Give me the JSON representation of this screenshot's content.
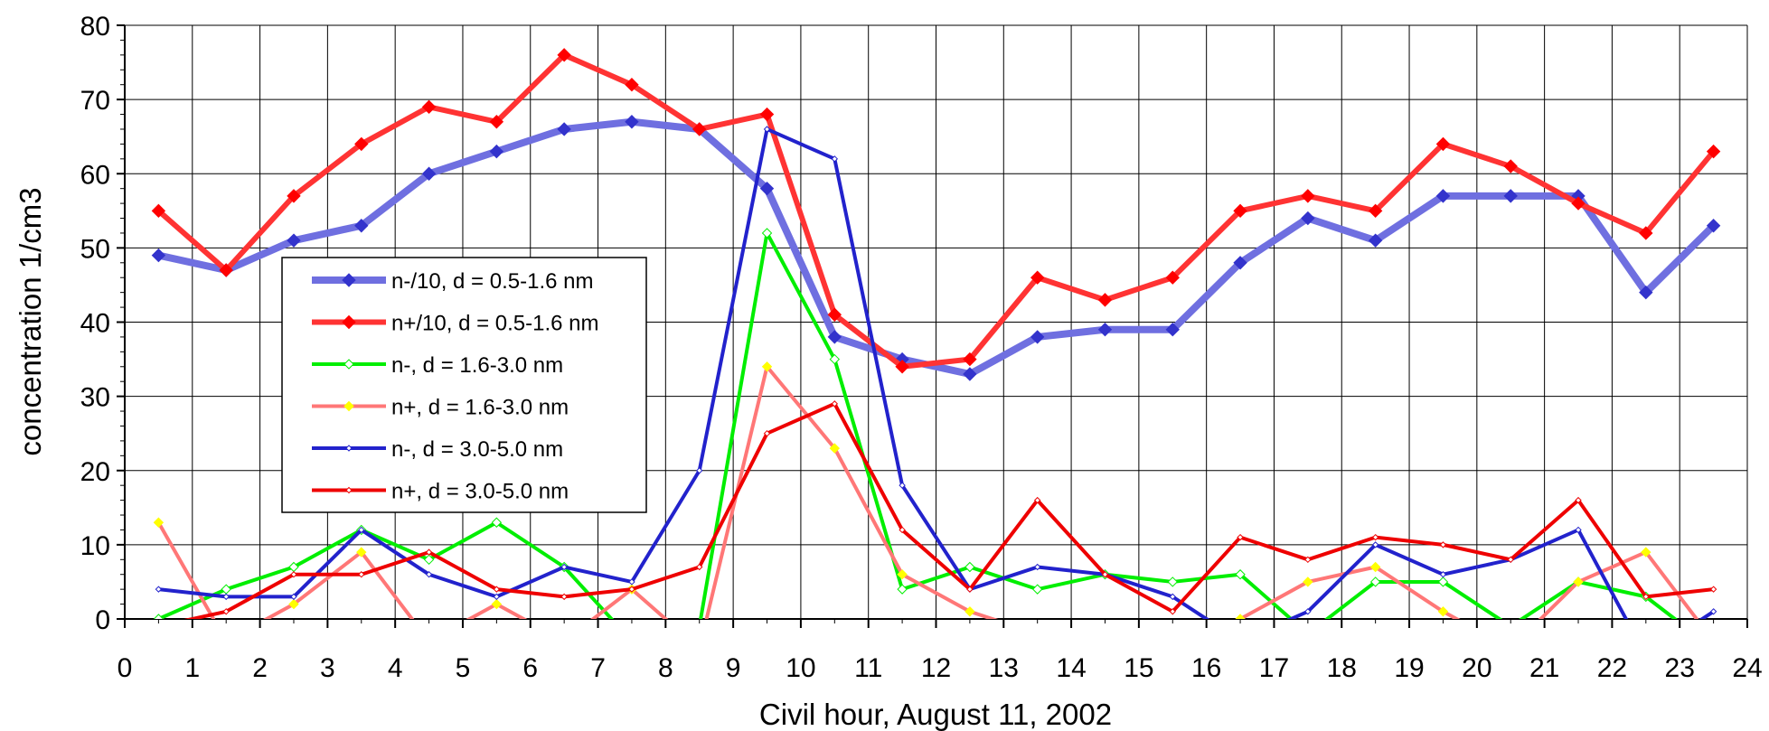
{
  "chart_data": {
    "type": "line",
    "xlabel": "Civil hour, August 11, 2002",
    "ylabel": "concentration 1/cm3",
    "xlim": [
      0,
      24
    ],
    "ylim": [
      0,
      80
    ],
    "x_ticks": [
      "0",
      "1",
      "2",
      "3",
      "4",
      "5",
      "6",
      "7",
      "8",
      "9",
      "10",
      "11",
      "12",
      "13",
      "14",
      "15",
      "16",
      "17",
      "18",
      "19",
      "20",
      "21",
      "22",
      "23",
      "24"
    ],
    "y_ticks": [
      "0",
      "10",
      "20",
      "30",
      "40",
      "50",
      "60",
      "70",
      "80"
    ],
    "grid": true,
    "legend_position": "left-middle",
    "x": [
      0.5,
      1.5,
      2.5,
      3.5,
      4.5,
      5.5,
      6.5,
      7.5,
      8.5,
      9.5,
      10.5,
      11.5,
      12.5,
      13.5,
      14.5,
      15.5,
      16.5,
      17.5,
      18.5,
      19.5,
      20.5,
      21.5,
      22.5,
      23.5
    ],
    "series": [
      {
        "name": "n-/10, d = 0.5-1.6 nm",
        "color": "#6f6fe0",
        "marker": "diamond",
        "marker_color": "#3333cc",
        "values": [
          49,
          47,
          51,
          53,
          60,
          63,
          66,
          67,
          66,
          58,
          38,
          35,
          33,
          38,
          39,
          39,
          48,
          54,
          51,
          57,
          57,
          57,
          44,
          53
        ]
      },
      {
        "name": "n+/10, d = 0.5-1.6 nm",
        "color": "#ff3333",
        "marker": "diamond",
        "marker_color": "#ff0000",
        "values": [
          55,
          47,
          57,
          64,
          69,
          67,
          76,
          72,
          66,
          68,
          41,
          34,
          35,
          46,
          43,
          46,
          55,
          57,
          55,
          64,
          61,
          56,
          52,
          63
        ]
      },
      {
        "name": "n-, d = 1.6-3.0 nm",
        "color": "#00ee00",
        "marker": "open-diamond",
        "marker_color": "#00ee00",
        "values": [
          0,
          4,
          7,
          12,
          8,
          13,
          7,
          -3,
          -1,
          52,
          35,
          4,
          7,
          4,
          6,
          5,
          6,
          -2,
          5,
          5,
          -1,
          5,
          3,
          -4
        ]
      },
      {
        "name": "n+, d = 1.6-3.0 nm",
        "color": "#ff7777",
        "marker": "diamond",
        "marker_color": "#ffff00",
        "values": [
          13,
          -3,
          2,
          9,
          -3,
          2,
          -3,
          4,
          -4,
          34,
          23,
          6,
          1,
          -2,
          null,
          null,
          0,
          5,
          7,
          1,
          -4,
          5,
          9,
          -3
        ]
      },
      {
        "name": "n-, d = 3.0-5.0 nm",
        "color": "#2222cc",
        "marker": "small-diamond",
        "marker_color": "#ffffff",
        "values": [
          4,
          3,
          3,
          12,
          6,
          3,
          7,
          5,
          20,
          66,
          62,
          18,
          4,
          7,
          6,
          3,
          -3,
          1,
          10,
          6,
          8,
          12,
          -5,
          1
        ]
      },
      {
        "name": "n+, d = 3.0-5.0 nm",
        "color": "#ee0000",
        "marker": "small-diamond",
        "marker_color": "#ffffff",
        "values": [
          -1,
          1,
          6,
          6,
          9,
          4,
          3,
          4,
          7,
          25,
          29,
          12,
          4,
          16,
          6,
          1,
          11,
          8,
          11,
          10,
          8,
          16,
          3,
          4
        ]
      }
    ]
  }
}
